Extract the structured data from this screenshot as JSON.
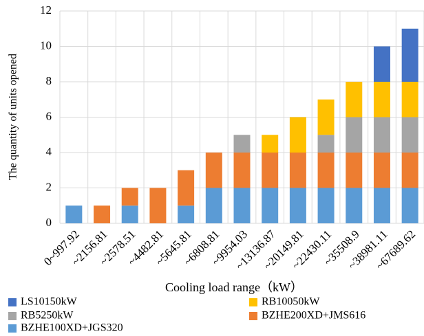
{
  "chart_data": {
    "type": "stacked_bar",
    "x_label": "Cooling load range（kW）",
    "y_label": "The quantity of units opened",
    "categories": [
      "0~997.92",
      "~2156.81",
      "~2578.51",
      "~4482.81",
      "~5645.81",
      "~6808.81",
      "~9954.03",
      "~13136.87",
      "~20149.81",
      "~22430.11",
      "~35508.9",
      "~38981.11",
      "~67689.62"
    ],
    "series": [
      {
        "name": "LS10150kW",
        "color": "#4472c4",
        "values": [
          0,
          0,
          0,
          0,
          0,
          0,
          0,
          0,
          0,
          0,
          0,
          2,
          3
        ]
      },
      {
        "name": "RB10050kW",
        "color": "#ffc000",
        "values": [
          0,
          0,
          0,
          0,
          0,
          0,
          0,
          1,
          2,
          2,
          2,
          2,
          2
        ]
      },
      {
        "name": "RB5250kW",
        "color": "#a5a5a5",
        "values": [
          0,
          0,
          0,
          0,
          0,
          0,
          1,
          0,
          0,
          1,
          2,
          2,
          2
        ]
      },
      {
        "name": "BZHE200XD+JMS616",
        "color": "#ed7d31",
        "values": [
          0,
          1,
          1,
          2,
          2,
          2,
          2,
          2,
          2,
          2,
          2,
          2,
          2
        ]
      },
      {
        "name": "BZHE100XD+JGS320",
        "color": "#5b9bd5",
        "values": [
          1,
          0,
          1,
          0,
          1,
          2,
          2,
          2,
          2,
          2,
          2,
          2,
          2
        ]
      }
    ],
    "ylim": [
      0,
      12
    ],
    "yticks": [
      0,
      2,
      4,
      6,
      8,
      10,
      12
    ],
    "grid": true
  }
}
